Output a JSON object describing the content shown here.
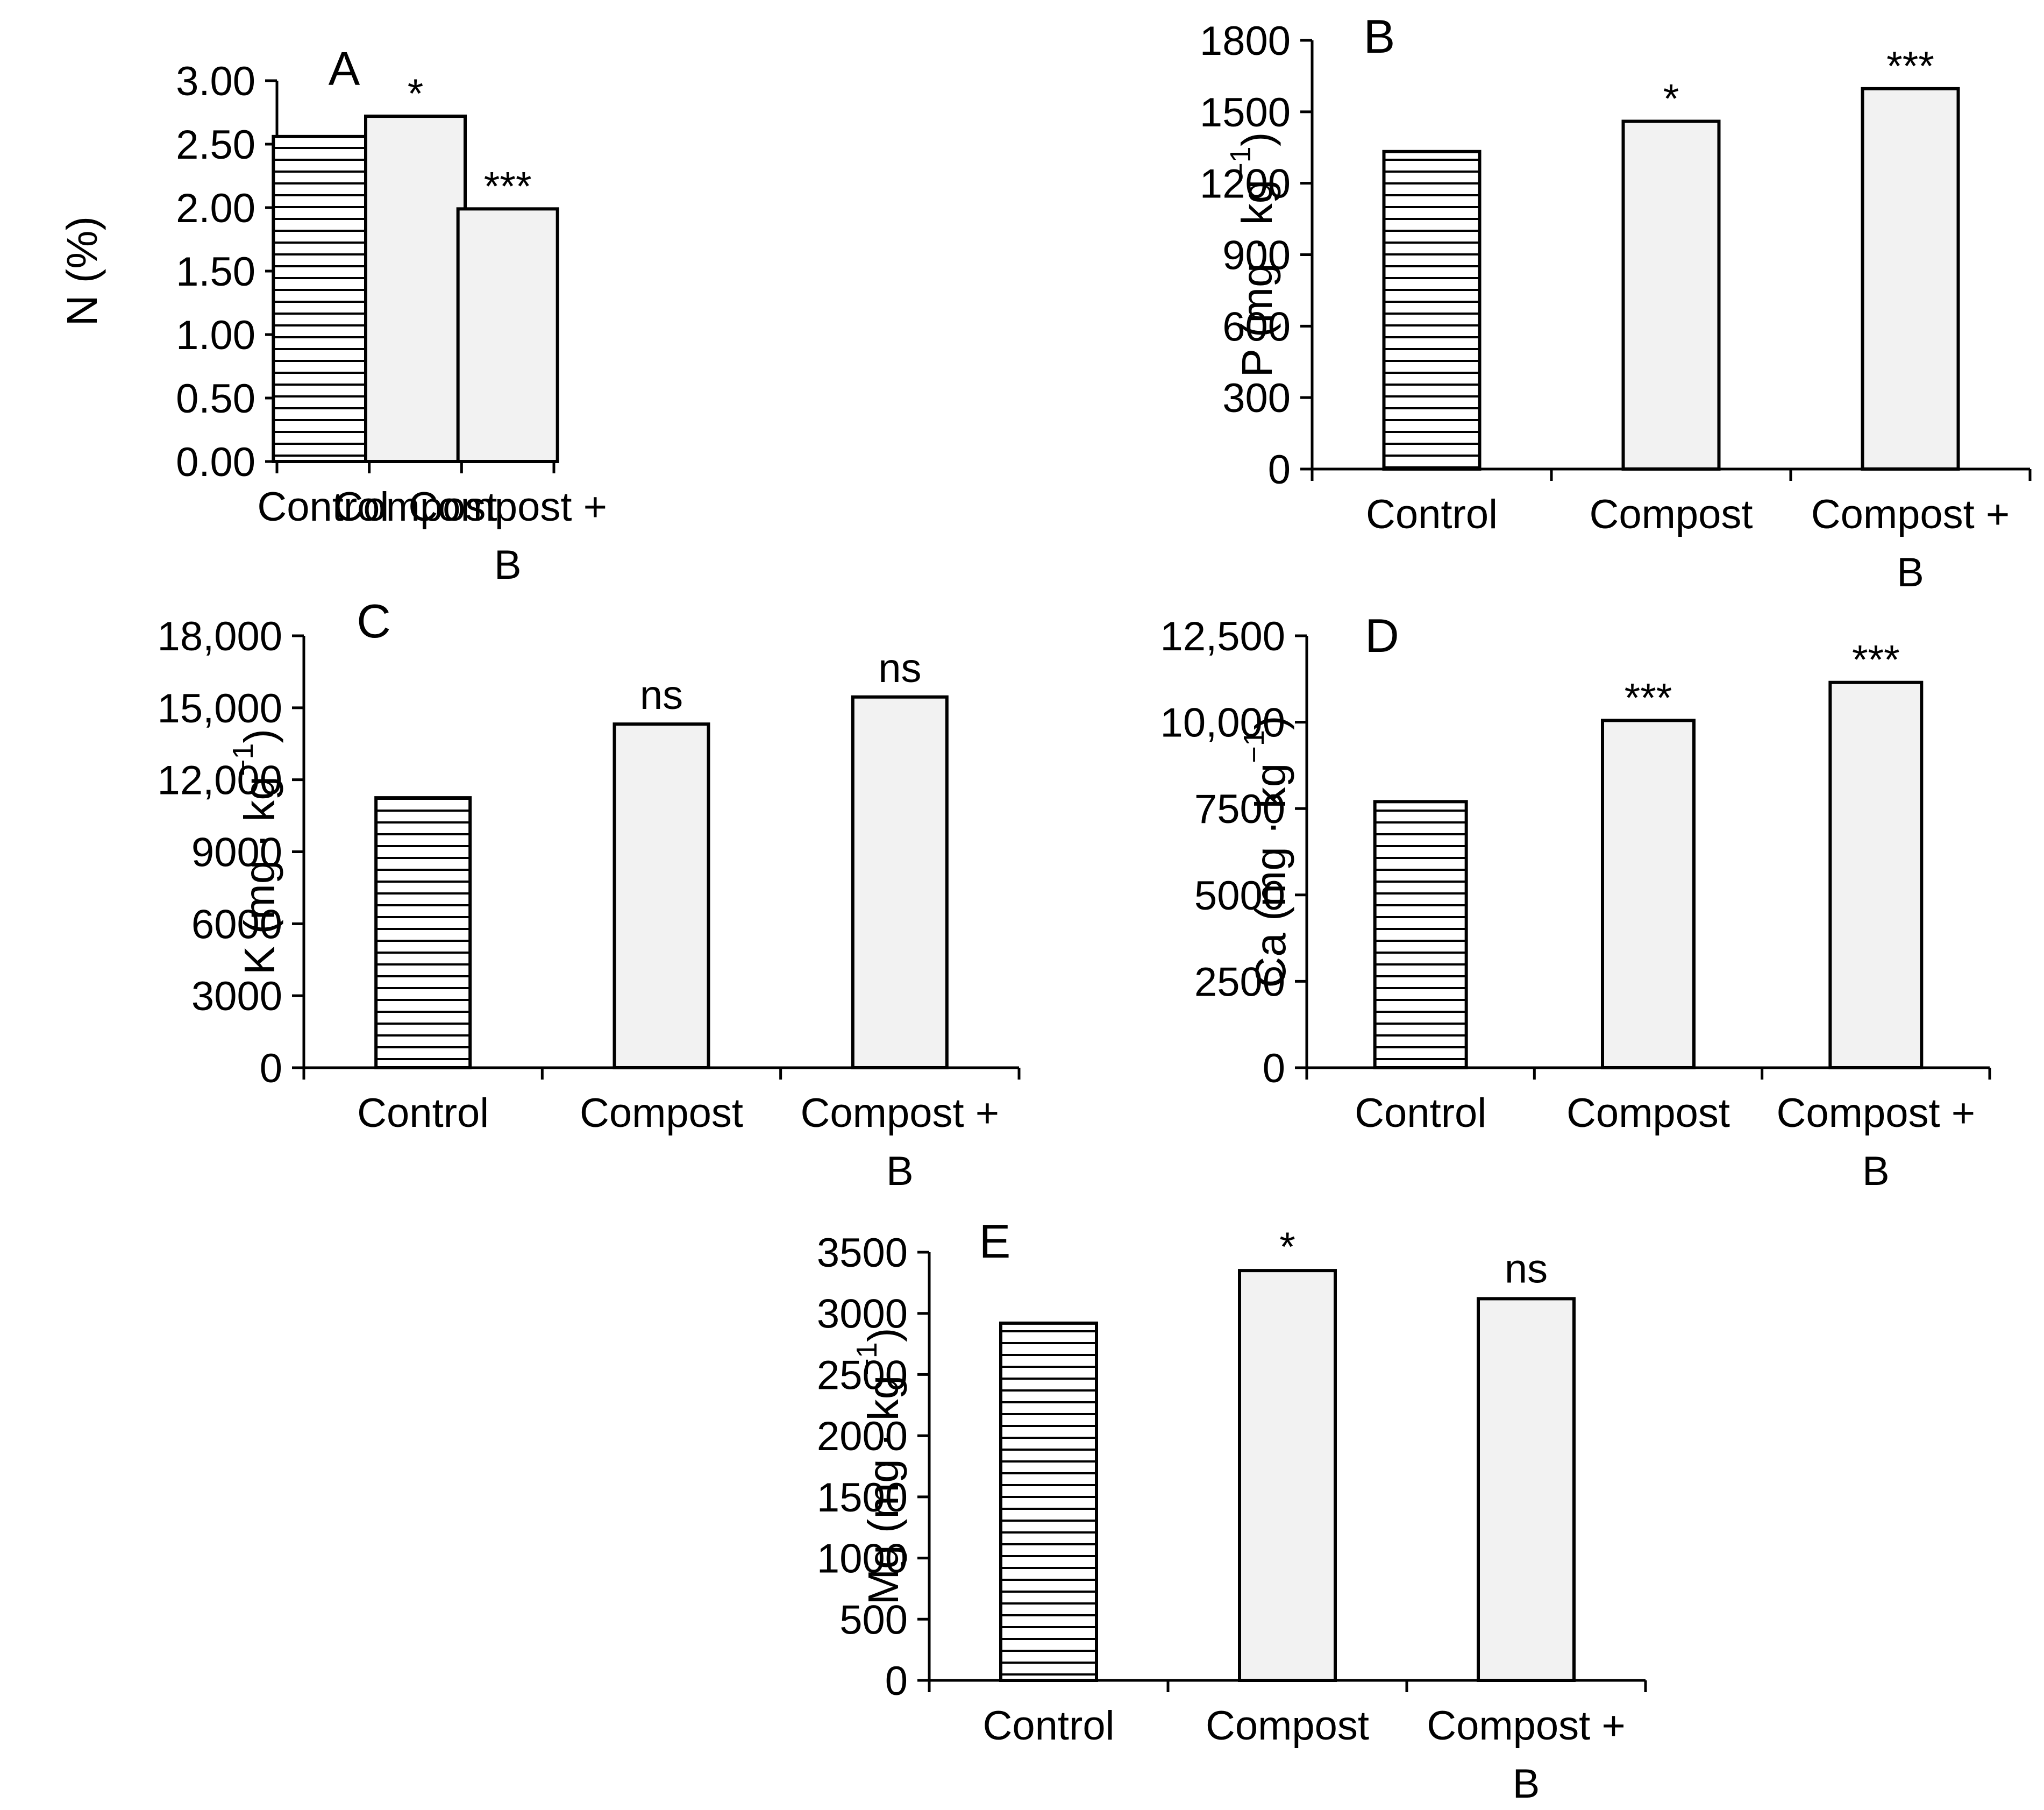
{
  "colors": {
    "axis": "#000000",
    "bar_fill": "#f2f2f2",
    "bar_stroke": "#000000",
    "hatch_line": "#000000",
    "background": "#ffffff"
  },
  "chart_data": [
    {
      "panel": "A",
      "type": "bar",
      "ylabel": "N (%)",
      "categories": [
        "Control",
        "Compost",
        "Compost + B"
      ],
      "category_lines": [
        [
          "Control"
        ],
        [
          "Compost"
        ],
        [
          "Compost +",
          "B"
        ]
      ],
      "values": [
        2.56,
        2.72,
        1.99
      ],
      "significance": [
        "",
        "*",
        "***"
      ],
      "ylim": [
        0,
        3
      ],
      "yticks": [
        "0.00",
        "0.50",
        "1.00",
        "1.50",
        "2.00",
        "2.50",
        "3.00"
      ],
      "control_hatched": true
    },
    {
      "panel": "B",
      "type": "bar",
      "ylabel_main": "P (mg · kg",
      "ylabel_sup": "−1",
      "ylabel_close": ")",
      "categories": [
        "Control",
        "Compost",
        "Compost + B"
      ],
      "category_lines": [
        [
          "Control"
        ],
        [
          "Compost"
        ],
        [
          "Compost +",
          "B"
        ]
      ],
      "values": [
        1333,
        1460,
        1597
      ],
      "significance": [
        "",
        "*",
        "***"
      ],
      "ylim": [
        0,
        1800
      ],
      "yticks": [
        "0",
        "300",
        "600",
        "900",
        "1200",
        "1500",
        "1800"
      ],
      "control_hatched": true
    },
    {
      "panel": "C",
      "type": "bar",
      "ylabel_main": "K (mg · kg",
      "ylabel_sup": "−1",
      "ylabel_close": ")",
      "categories": [
        "Control",
        "Compost",
        "Compost + B"
      ],
      "category_lines": [
        [
          "Control"
        ],
        [
          "Compost"
        ],
        [
          "Compost +",
          "B"
        ]
      ],
      "values": [
        11250,
        14320,
        15450
      ],
      "significance": [
        "",
        "ns",
        "ns"
      ],
      "ylim": [
        0,
        18000
      ],
      "yticks": [
        "0",
        "3000",
        "6000",
        "9000",
        "12,000",
        "15,000",
        "18,000"
      ],
      "control_hatched": true
    },
    {
      "panel": "D",
      "type": "bar",
      "ylabel_main": "Ca (mg · kg",
      "ylabel_sup": "−1",
      "ylabel_close": ")",
      "categories": [
        "Control",
        "Compost",
        "Compost + B"
      ],
      "category_lines": [
        [
          "Control"
        ],
        [
          "Compost"
        ],
        [
          "Compost +",
          "B"
        ]
      ],
      "values": [
        7700,
        10050,
        11150
      ],
      "significance": [
        "",
        "***",
        "***"
      ],
      "ylim": [
        0,
        12500
      ],
      "yticks": [
        "0",
        "2500",
        "5000",
        "7500",
        "10,000",
        "12,500"
      ],
      "control_hatched": true
    },
    {
      "panel": "E",
      "type": "bar",
      "ylabel_main": "Mg (mg · kg",
      "ylabel_sup": "−1",
      "ylabel_close": ")",
      "categories": [
        "Control",
        "Compost",
        "Compost + B"
      ],
      "category_lines": [
        [
          "Control"
        ],
        [
          "Compost"
        ],
        [
          "Compost +",
          "B"
        ]
      ],
      "values": [
        2920,
        3350,
        3120
      ],
      "significance": [
        "",
        "*",
        "ns"
      ],
      "ylim": [
        0,
        3500
      ],
      "yticks": [
        "0",
        "500",
        "1000",
        "1500",
        "2000",
        "2500",
        "3000",
        "3500"
      ],
      "control_hatched": true
    }
  ]
}
